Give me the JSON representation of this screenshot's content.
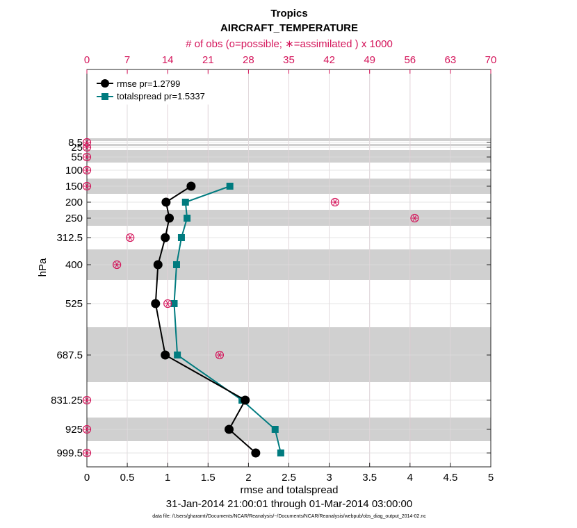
{
  "chart_data": {
    "type": "line",
    "title": "Tropics",
    "subtitle": "AIRCRAFT_TEMPERATURE",
    "top_axis_label": "# of obs (o=possible; ∗=assimilated ) x 1000",
    "xlabel": "rmse and totalspread",
    "ylabel": "hPa",
    "date_range": "31-Jan-2014 21:00:01 through 01-Mar-2014 03:00:00",
    "data_file": "data file: /Users/gharamti/Documents/NCAR/Reanalysis/~/Documents/NCAR/Reanalysis/webpub/obs_diag_output_2014-02.nc",
    "xlim": [
      0,
      5
    ],
    "x_ticks": [
      "0",
      "0.5",
      "1",
      "1.5",
      "2",
      "2.5",
      "3",
      "3.5",
      "4",
      "4.5",
      "5"
    ],
    "top_xlim": [
      0,
      70
    ],
    "top_ticks": [
      "0",
      "7",
      "14",
      "21",
      "28",
      "35",
      "42",
      "49",
      "56",
      "63",
      "70"
    ],
    "levels": [
      8.5,
      25,
      55,
      100,
      150,
      200,
      250,
      312.5,
      400,
      525,
      687.5,
      831.25,
      925,
      999.5
    ],
    "level_labels": [
      "8.5",
      "25",
      "55",
      "100",
      "150",
      "200",
      "250",
      "312.5",
      "400",
      "525",
      "687.5",
      "831.25",
      "925",
      "999.5"
    ],
    "series": [
      {
        "name": "rmse pr=1.2799",
        "color": "#000000",
        "marker": "circle",
        "levels": [
          150,
          200,
          250,
          312.5,
          400,
          525,
          687.5,
          831.25,
          925,
          999.5
        ],
        "values": [
          1.29,
          0.98,
          1.02,
          0.97,
          0.88,
          0.85,
          0.97,
          1.96,
          1.76,
          2.09
        ]
      },
      {
        "name": "totalspread pr=1.5337",
        "color": "#007b7f",
        "marker": "square",
        "levels": [
          150,
          200,
          250,
          312.5,
          400,
          525,
          687.5,
          831.25,
          925,
          999.5
        ],
        "values": [
          1.77,
          1.22,
          1.24,
          1.17,
          1.11,
          1.08,
          1.12,
          1.92,
          2.33,
          2.4
        ]
      }
    ],
    "obs_counts": {
      "name": "# of obs (x1000)",
      "color": "#d4145a",
      "levels": [
        8.5,
        25,
        55,
        100,
        150,
        200,
        250,
        312.5,
        400,
        525,
        687.5,
        831.25,
        925,
        999.5
      ],
      "possible": [
        0,
        0,
        0,
        0,
        0,
        43,
        56.8,
        7.5,
        5.2,
        14,
        23,
        0,
        0,
        0
      ],
      "assimilated": [
        0,
        0,
        0,
        0,
        0,
        43,
        56.8,
        7.5,
        5.2,
        14,
        23,
        0,
        0,
        0
      ]
    },
    "grid": true,
    "legend_position": "top-left"
  }
}
